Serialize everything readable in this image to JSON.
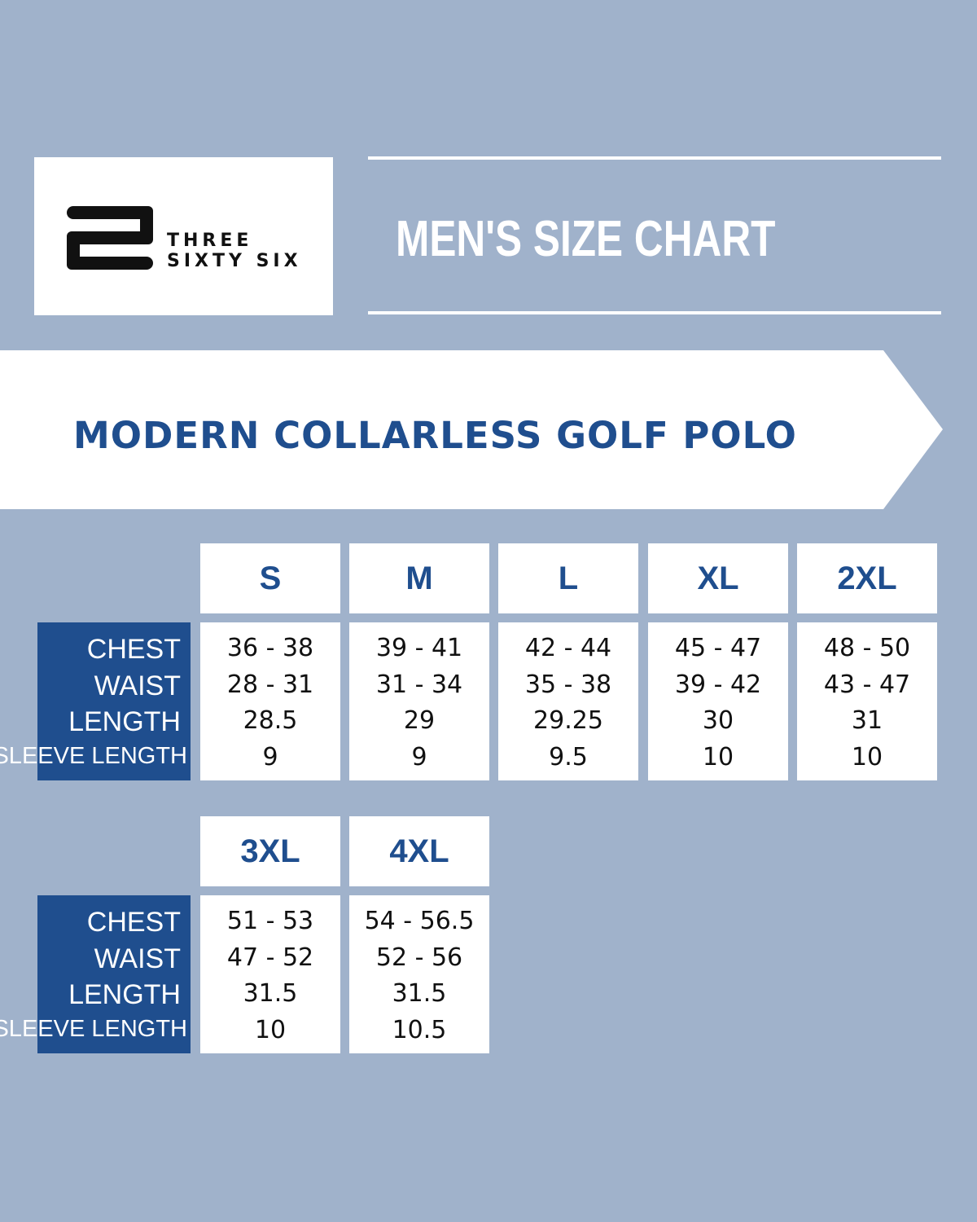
{
  "brand": {
    "line1": "THREE",
    "line2": "SIXTY SIX",
    "logo_icon": "stacked-bars-s-icon"
  },
  "header": {
    "title": "MEN'S SIZE CHART"
  },
  "banner": {
    "product": "MODERN COLLARLESS GOLF POLO"
  },
  "colors": {
    "background": "#a0b2cb",
    "accent_blue": "#1f4e8e",
    "panel": "#ffffff"
  },
  "measurements": [
    "CHEST",
    "WAIST",
    "LENGTH",
    "SLEEVE LENGTH"
  ],
  "table1": {
    "sizes": [
      "S",
      "M",
      "L",
      "XL",
      "2XL"
    ],
    "values": [
      [
        "36 - 38",
        "28 - 31",
        "28.5",
        "9"
      ],
      [
        "39 - 41",
        "31 - 34",
        "29",
        "9"
      ],
      [
        "42 - 44",
        "35 - 38",
        "29.25",
        "9.5"
      ],
      [
        "45 - 47",
        "39 - 42",
        "30",
        "10"
      ],
      [
        "48 - 50",
        "43 - 47",
        "31",
        "10"
      ]
    ]
  },
  "table2": {
    "sizes": [
      "3XL",
      "4XL"
    ],
    "values": [
      [
        "51 - 53",
        "47 - 52",
        "31.5",
        "10"
      ],
      [
        "54 - 56.5",
        "52 - 56",
        "31.5",
        "10.5"
      ]
    ]
  }
}
